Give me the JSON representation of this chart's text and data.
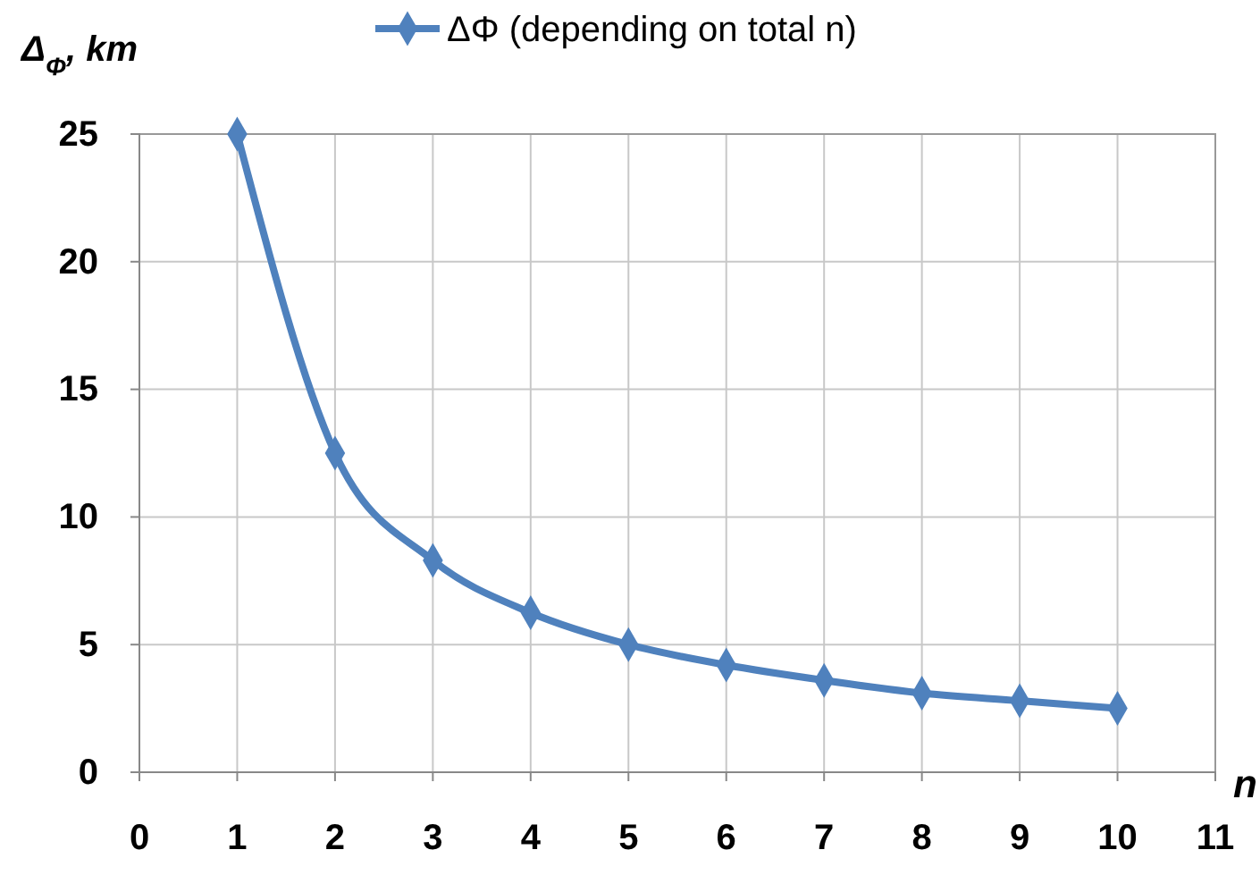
{
  "chart_data": {
    "type": "line",
    "ylabel": "Δ$_{Φ}$, km",
    "xlabel": "n",
    "x": [
      1,
      2,
      3,
      4,
      5,
      6,
      7,
      8,
      9,
      10
    ],
    "series": [
      {
        "name": "ΔΦ (depending on total n)",
        "color": "#4f81bd",
        "values": [
          25,
          12.5,
          8.3,
          6.25,
          5,
          4.2,
          3.6,
          3.1,
          2.8,
          2.5
        ]
      }
    ],
    "xlim": [
      0,
      11
    ],
    "xticks": [
      0,
      1,
      2,
      3,
      4,
      5,
      6,
      7,
      8,
      9,
      10,
      11
    ],
    "ylim": [
      0,
      25
    ],
    "yticks": [
      0,
      5,
      10,
      15,
      20,
      25
    ],
    "grid": true,
    "legend": "top",
    "marker": "diamond",
    "line_style": "solid"
  }
}
